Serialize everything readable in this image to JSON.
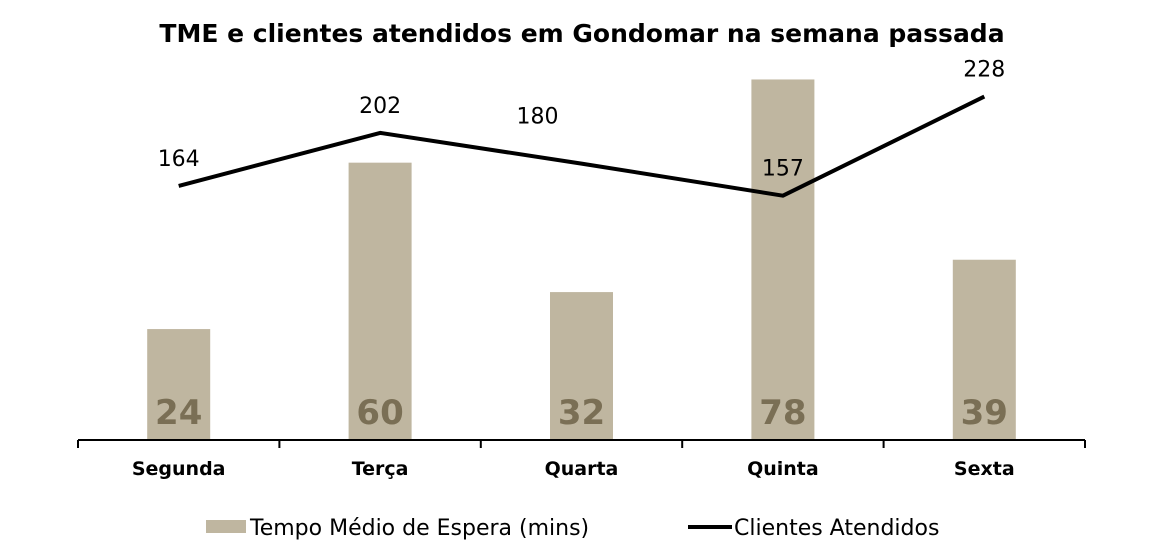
{
  "chart_data": {
    "type": "bar+line",
    "title": "TME e clientes atendidos em Gondomar na semana passada",
    "categories": [
      "Segunda",
      "Terça",
      "Quarta",
      "Quinta",
      "Sexta"
    ],
    "series": [
      {
        "name": "Tempo Médio de Espera (mins)",
        "type": "bar",
        "values": [
          24,
          60,
          32,
          78,
          39
        ],
        "color": "#BFB6A0",
        "label_color": "#7A6F55",
        "ylim": [
          0,
          90
        ]
      },
      {
        "name": "Clientes Atendidos",
        "type": "line",
        "values": [
          164,
          202,
          180,
          157,
          228
        ],
        "color": "#000000",
        "ylim": [
          -18,
          280
        ]
      }
    ],
    "xlabel": "",
    "ylabel": "",
    "grid": false,
    "legend": "bottom"
  }
}
